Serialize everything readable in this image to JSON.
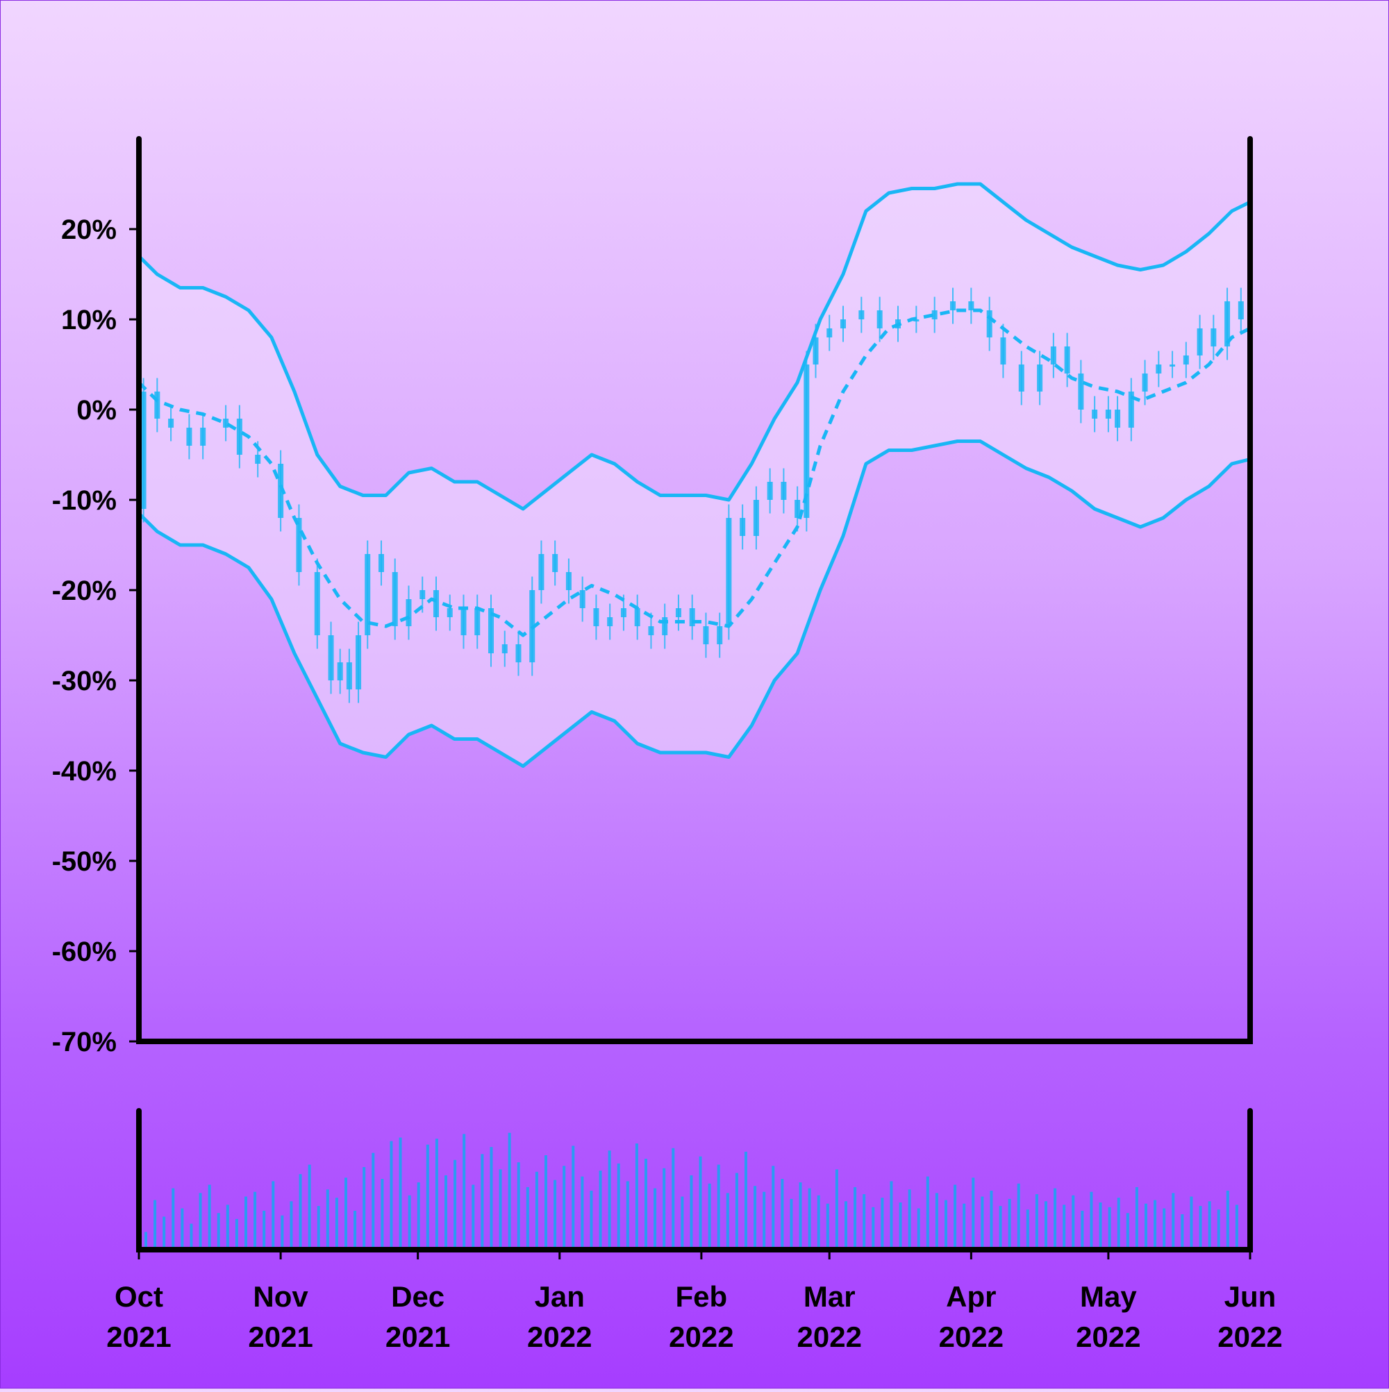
{
  "chart_data": {
    "type": "candlestick",
    "title": "",
    "xlabel": "",
    "ylabel": "",
    "colors": {
      "accent": "#19b6f5",
      "volume": "#2a9bf2",
      "axis": "#000000",
      "band_fill": "#f0dcff"
    },
    "y_axis": {
      "ylim": [
        -70,
        30
      ],
      "ticks": [
        20,
        10,
        0,
        -10,
        -20,
        -30,
        -40,
        -50,
        -60,
        -70
      ],
      "tick_labels": [
        "20%",
        "10%",
        "0%",
        "-10%",
        "-20%",
        "-30%",
        "-40%",
        "-50%",
        "-60%",
        "-70%"
      ]
    },
    "x_axis": {
      "xlim": [
        "2021-10-01",
        "2022-06-01"
      ],
      "ticks": [
        {
          "date": "2021-10-01",
          "month": "Oct",
          "year": "2021"
        },
        {
          "date": "2021-11-01",
          "month": "Nov",
          "year": "2021"
        },
        {
          "date": "2021-12-01",
          "month": "Dec",
          "year": "2021"
        },
        {
          "date": "2022-01-01",
          "month": "Jan",
          "year": "2022"
        },
        {
          "date": "2022-02-01",
          "month": "Feb",
          "year": "2022"
        },
        {
          "date": "2022-03-01",
          "month": "Mar",
          "year": "2022"
        },
        {
          "date": "2022-04-01",
          "month": "Apr",
          "year": "2022"
        },
        {
          "date": "2022-05-01",
          "month": "May",
          "year": "2022"
        },
        {
          "date": "2022-06-01",
          "month": "Jun",
          "year": "2022"
        }
      ]
    },
    "grid": false,
    "legend": "none",
    "price_close_pct": [
      [
        "2021-10-01",
        -11
      ],
      [
        "2021-10-02",
        2
      ],
      [
        "2021-10-05",
        -1
      ],
      [
        "2021-10-08",
        -2
      ],
      [
        "2021-10-12",
        -4
      ],
      [
        "2021-10-15",
        -2
      ],
      [
        "2021-10-20",
        -1
      ],
      [
        "2021-10-23",
        -5
      ],
      [
        "2021-10-27",
        -6
      ],
      [
        "2021-11-01",
        -12
      ],
      [
        "2021-11-05",
        -18
      ],
      [
        "2021-11-09",
        -25
      ],
      [
        "2021-11-12",
        -30
      ],
      [
        "2021-11-14",
        -28
      ],
      [
        "2021-11-16",
        -31
      ],
      [
        "2021-11-18",
        -25
      ],
      [
        "2021-11-20",
        -16
      ],
      [
        "2021-11-23",
        -18
      ],
      [
        "2021-11-26",
        -24
      ],
      [
        "2021-11-29",
        -21
      ],
      [
        "2021-12-02",
        -20
      ],
      [
        "2021-12-05",
        -23
      ],
      [
        "2021-12-08",
        -22
      ],
      [
        "2021-12-11",
        -25
      ],
      [
        "2021-12-14",
        -22
      ],
      [
        "2021-12-17",
        -27
      ],
      [
        "2021-12-20",
        -26
      ],
      [
        "2021-12-23",
        -28
      ],
      [
        "2021-12-26",
        -20
      ],
      [
        "2021-12-28",
        -16
      ],
      [
        "2021-12-31",
        -18
      ],
      [
        "2022-01-03",
        -20
      ],
      [
        "2022-01-06",
        -22
      ],
      [
        "2022-01-09",
        -24
      ],
      [
        "2022-01-12",
        -23
      ],
      [
        "2022-01-15",
        -22
      ],
      [
        "2022-01-18",
        -24
      ],
      [
        "2022-01-21",
        -25
      ],
      [
        "2022-01-24",
        -23
      ],
      [
        "2022-01-27",
        -22
      ],
      [
        "2022-01-30",
        -24
      ],
      [
        "2022-02-02",
        -26
      ],
      [
        "2022-02-05",
        -24
      ],
      [
        "2022-02-07",
        -12
      ],
      [
        "2022-02-10",
        -14
      ],
      [
        "2022-02-13",
        -10
      ],
      [
        "2022-02-16",
        -8
      ],
      [
        "2022-02-19",
        -10
      ],
      [
        "2022-02-22",
        -12
      ],
      [
        "2022-02-24",
        5
      ],
      [
        "2022-02-26",
        8
      ],
      [
        "2022-03-01",
        9
      ],
      [
        "2022-03-04",
        10
      ],
      [
        "2022-03-08",
        11
      ],
      [
        "2022-03-12",
        9
      ],
      [
        "2022-03-16",
        10
      ],
      [
        "2022-03-20",
        10
      ],
      [
        "2022-03-24",
        11
      ],
      [
        "2022-03-28",
        12
      ],
      [
        "2022-04-01",
        11
      ],
      [
        "2022-04-05",
        8
      ],
      [
        "2022-04-08",
        5
      ],
      [
        "2022-04-12",
        2
      ],
      [
        "2022-04-16",
        5
      ],
      [
        "2022-04-19",
        7
      ],
      [
        "2022-04-22",
        4
      ],
      [
        "2022-04-25",
        0
      ],
      [
        "2022-04-28",
        -1
      ],
      [
        "2022-05-01",
        0
      ],
      [
        "2022-05-03",
        -2
      ],
      [
        "2022-05-06",
        2
      ],
      [
        "2022-05-09",
        4
      ],
      [
        "2022-05-12",
        5
      ],
      [
        "2022-05-15",
        5
      ],
      [
        "2022-05-18",
        6
      ],
      [
        "2022-05-21",
        9
      ],
      [
        "2022-05-24",
        7
      ],
      [
        "2022-05-27",
        12
      ],
      [
        "2022-05-30",
        10
      ],
      [
        "2022-06-01",
        11
      ]
    ],
    "moving_average_pct": [
      [
        "2021-10-01",
        3
      ],
      [
        "2021-10-05",
        1
      ],
      [
        "2021-10-10",
        0
      ],
      [
        "2021-10-15",
        -0.5
      ],
      [
        "2021-10-20",
        -1.5
      ],
      [
        "2021-10-25",
        -3
      ],
      [
        "2021-10-30",
        -6
      ],
      [
        "2021-11-04",
        -12
      ],
      [
        "2021-11-09",
        -17
      ],
      [
        "2021-11-14",
        -21
      ],
      [
        "2021-11-19",
        -23.5
      ],
      [
        "2021-11-24",
        -24
      ],
      [
        "2021-11-29",
        -23
      ],
      [
        "2021-12-04",
        -21
      ],
      [
        "2021-12-09",
        -22
      ],
      [
        "2021-12-14",
        -22
      ],
      [
        "2021-12-19",
        -23
      ],
      [
        "2021-12-24",
        -25
      ],
      [
        "2021-12-29",
        -23
      ],
      [
        "2022-01-03",
        -21
      ],
      [
        "2022-01-08",
        -19.5
      ],
      [
        "2022-01-13",
        -20.5
      ],
      [
        "2022-01-18",
        -22
      ],
      [
        "2022-01-23",
        -23.5
      ],
      [
        "2022-01-28",
        -23.5
      ],
      [
        "2022-02-02",
        -23.5
      ],
      [
        "2022-02-07",
        -24
      ],
      [
        "2022-02-12",
        -21
      ],
      [
        "2022-02-17",
        -17
      ],
      [
        "2022-02-22",
        -13
      ],
      [
        "2022-02-27",
        -4
      ],
      [
        "2022-03-04",
        2
      ],
      [
        "2022-03-09",
        6
      ],
      [
        "2022-03-14",
        9
      ],
      [
        "2022-03-19",
        10
      ],
      [
        "2022-03-24",
        10.5
      ],
      [
        "2022-03-29",
        11
      ],
      [
        "2022-04-03",
        11
      ],
      [
        "2022-04-08",
        9
      ],
      [
        "2022-04-13",
        7
      ],
      [
        "2022-04-18",
        5.5
      ],
      [
        "2022-04-23",
        3.5
      ],
      [
        "2022-04-28",
        2.5
      ],
      [
        "2022-05-03",
        2
      ],
      [
        "2022-05-08",
        1
      ],
      [
        "2022-05-13",
        2
      ],
      [
        "2022-05-18",
        3
      ],
      [
        "2022-05-23",
        5
      ],
      [
        "2022-05-28",
        8
      ],
      [
        "2022-06-01",
        9
      ]
    ],
    "upper_band_pct": [
      [
        "2021-10-01",
        17
      ],
      [
        "2021-10-05",
        15
      ],
      [
        "2021-10-10",
        13.5
      ],
      [
        "2021-10-15",
        13.5
      ],
      [
        "2021-10-20",
        12.5
      ],
      [
        "2021-10-25",
        11
      ],
      [
        "2021-10-30",
        8
      ],
      [
        "2021-11-04",
        2
      ],
      [
        "2021-11-09",
        -5
      ],
      [
        "2021-11-14",
        -8.5
      ],
      [
        "2021-11-19",
        -9.5
      ],
      [
        "2021-11-24",
        -9.5
      ],
      [
        "2021-11-29",
        -7
      ],
      [
        "2021-12-04",
        -6.5
      ],
      [
        "2021-12-09",
        -8
      ],
      [
        "2021-12-14",
        -8
      ],
      [
        "2021-12-19",
        -9.5
      ],
      [
        "2021-12-24",
        -11
      ],
      [
        "2021-12-29",
        -9
      ],
      [
        "2022-01-03",
        -7
      ],
      [
        "2022-01-08",
        -5
      ],
      [
        "2022-01-13",
        -6
      ],
      [
        "2022-01-18",
        -8
      ],
      [
        "2022-01-23",
        -9.5
      ],
      [
        "2022-01-28",
        -9.5
      ],
      [
        "2022-02-02",
        -9.5
      ],
      [
        "2022-02-07",
        -10
      ],
      [
        "2022-02-12",
        -6
      ],
      [
        "2022-02-17",
        -1
      ],
      [
        "2022-02-22",
        3
      ],
      [
        "2022-02-27",
        10
      ],
      [
        "2022-03-04",
        15
      ],
      [
        "2022-03-09",
        22
      ],
      [
        "2022-03-14",
        24
      ],
      [
        "2022-03-19",
        24.5
      ],
      [
        "2022-03-24",
        24.5
      ],
      [
        "2022-03-29",
        25
      ],
      [
        "2022-04-03",
        25
      ],
      [
        "2022-04-08",
        23
      ],
      [
        "2022-04-13",
        21
      ],
      [
        "2022-04-18",
        19.5
      ],
      [
        "2022-04-23",
        18
      ],
      [
        "2022-04-28",
        17
      ],
      [
        "2022-05-03",
        16
      ],
      [
        "2022-05-08",
        15.5
      ],
      [
        "2022-05-13",
        16
      ],
      [
        "2022-05-18",
        17.5
      ],
      [
        "2022-05-23",
        19.5
      ],
      [
        "2022-05-28",
        22
      ],
      [
        "2022-06-01",
        23
      ]
    ],
    "lower_band_pct": [
      [
        "2021-10-01",
        -11.5
      ],
      [
        "2021-10-05",
        -13.5
      ],
      [
        "2021-10-10",
        -15
      ],
      [
        "2021-10-15",
        -15
      ],
      [
        "2021-10-20",
        -16
      ],
      [
        "2021-10-25",
        -17.5
      ],
      [
        "2021-10-30",
        -21
      ],
      [
        "2021-11-04",
        -27
      ],
      [
        "2021-11-09",
        -32
      ],
      [
        "2021-11-14",
        -37
      ],
      [
        "2021-11-19",
        -38
      ],
      [
        "2021-11-24",
        -38.5
      ],
      [
        "2021-11-29",
        -36
      ],
      [
        "2021-12-04",
        -35
      ],
      [
        "2021-12-09",
        -36.5
      ],
      [
        "2021-12-14",
        -36.5
      ],
      [
        "2021-12-19",
        -38
      ],
      [
        "2021-12-24",
        -39.5
      ],
      [
        "2021-12-29",
        -37.5
      ],
      [
        "2022-01-03",
        -35.5
      ],
      [
        "2022-01-08",
        -33.5
      ],
      [
        "2022-01-13",
        -34.5
      ],
      [
        "2022-01-18",
        -37
      ],
      [
        "2022-01-23",
        -38
      ],
      [
        "2022-01-28",
        -38
      ],
      [
        "2022-02-02",
        -38
      ],
      [
        "2022-02-07",
        -38.5
      ],
      [
        "2022-02-12",
        -35
      ],
      [
        "2022-02-17",
        -30
      ],
      [
        "2022-02-22",
        -27
      ],
      [
        "2022-02-27",
        -20
      ],
      [
        "2022-03-04",
        -14
      ],
      [
        "2022-03-09",
        -6
      ],
      [
        "2022-03-14",
        -4.5
      ],
      [
        "2022-03-19",
        -4.5
      ],
      [
        "2022-03-24",
        -4
      ],
      [
        "2022-03-29",
        -3.5
      ],
      [
        "2022-04-03",
        -3.5
      ],
      [
        "2022-04-08",
        -5
      ],
      [
        "2022-04-13",
        -6.5
      ],
      [
        "2022-04-18",
        -7.5
      ],
      [
        "2022-04-23",
        -9
      ],
      [
        "2022-04-28",
        -11
      ],
      [
        "2022-05-03",
        -12
      ],
      [
        "2022-05-08",
        -13
      ],
      [
        "2022-05-13",
        -12
      ],
      [
        "2022-05-18",
        -10
      ],
      [
        "2022-05-23",
        -8.5
      ],
      [
        "2022-05-28",
        -6
      ],
      [
        "2022-06-01",
        -5.5
      ]
    ],
    "volume_relative": [
      0.15,
      0.42,
      0.28,
      0.52,
      0.35,
      0.22,
      0.48,
      0.55,
      0.31,
      0.38,
      0.26,
      0.45,
      0.49,
      0.33,
      0.58,
      0.29,
      0.41,
      0.64,
      0.72,
      0.37,
      0.51,
      0.44,
      0.61,
      0.33,
      0.7,
      0.82,
      0.6,
      0.92,
      0.95,
      0.46,
      0.57,
      0.89,
      0.94,
      0.63,
      0.76,
      0.98,
      0.55,
      0.81,
      0.87,
      0.68,
      0.99,
      0.74,
      0.53,
      0.66,
      0.8,
      0.59,
      0.71,
      0.88,
      0.62,
      0.5,
      0.67,
      0.84,
      0.73,
      0.58,
      0.9,
      0.77,
      0.52,
      0.69,
      0.86,
      0.45,
      0.63,
      0.79,
      0.56,
      0.72,
      0.48,
      0.65,
      0.83,
      0.54,
      0.49,
      0.71,
      0.6,
      0.43,
      0.57,
      0.52,
      0.46,
      0.39,
      0.68,
      0.41,
      0.53,
      0.47,
      0.36,
      0.44,
      0.58,
      0.4,
      0.51,
      0.35,
      0.62,
      0.48,
      0.42,
      0.55,
      0.39,
      0.61,
      0.45,
      0.5,
      0.37,
      0.43,
      0.56,
      0.34,
      0.47,
      0.41,
      0.52,
      0.38,
      0.46,
      0.33,
      0.49,
      0.4,
      0.36,
      0.44,
      0.31,
      0.53,
      0.39,
      0.42,
      0.35,
      0.48,
      0.3,
      0.45,
      0.37,
      0.41,
      0.34,
      0.5,
      0.38
    ]
  }
}
